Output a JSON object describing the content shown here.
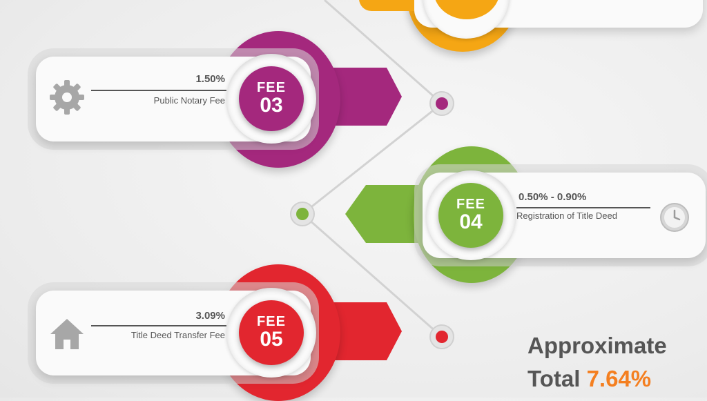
{
  "fees": [
    {
      "prefix": "FEE",
      "number": "03",
      "percent": "1.50%",
      "label": "Public Notary Fee",
      "icon": "gear-icon",
      "color": "#a4287d"
    },
    {
      "prefix": "FEE",
      "number": "04",
      "percent": "0.50% - 0.90%",
      "label": "Registration of Title Deed",
      "icon": "clock-icon",
      "color": "#7db43c"
    },
    {
      "prefix": "FEE",
      "number": "05",
      "percent": "3.09%",
      "label": "Title Deed Transfer Fee",
      "icon": "house-icon",
      "color": "#e2262f"
    }
  ],
  "top_partial_color": "#f5a614",
  "total": {
    "line1": "Approximate",
    "label": "Total",
    "value": "7.64%",
    "value_color": "#f47f20"
  }
}
